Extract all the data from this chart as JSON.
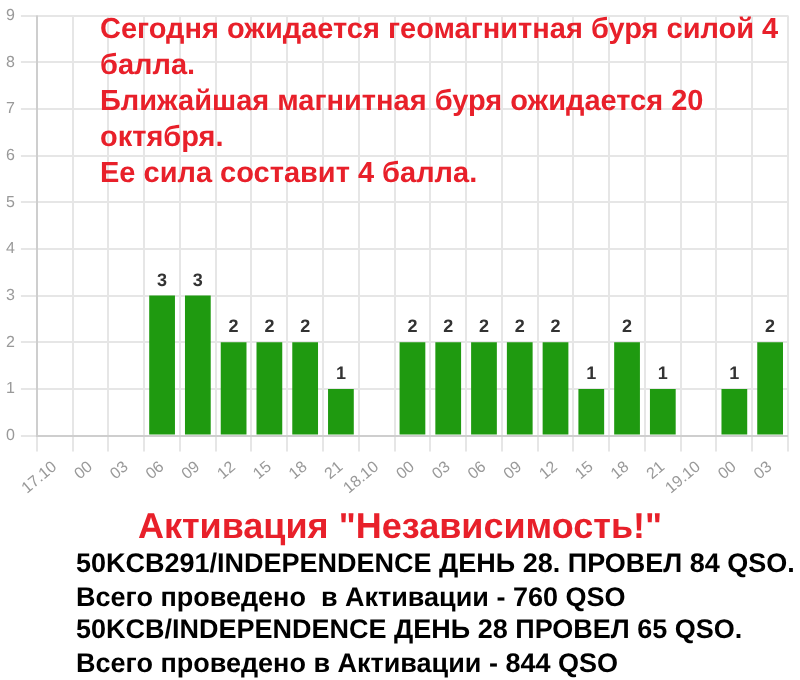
{
  "chart_data": {
    "type": "bar",
    "categories": [
      "17.10",
      "00",
      "03",
      "06",
      "09",
      "12",
      "15",
      "18",
      "21",
      "18.10",
      "00",
      "03",
      "06",
      "09",
      "12",
      "15",
      "18",
      "21",
      "19.10",
      "00",
      "03"
    ],
    "values": [
      0,
      0,
      0,
      3,
      3,
      2,
      2,
      2,
      1,
      0,
      2,
      2,
      2,
      2,
      2,
      1,
      2,
      1,
      0,
      1,
      2
    ],
    "value_labels": [
      null,
      null,
      null,
      "3",
      "3",
      "2",
      "2",
      "2",
      "1",
      null,
      "2",
      "2",
      "2",
      "2",
      "2",
      "1",
      "2",
      "1",
      null,
      "1",
      "2"
    ],
    "color": "#1f9a10",
    "ylim": [
      0,
      9
    ],
    "yticks": [
      0,
      1,
      2,
      3,
      4,
      5,
      6,
      7,
      8,
      9
    ],
    "grid": true,
    "annotations": [
      "Сегодня ожидается геомагнитная буря силой 4 балла.",
      "Ближайшая магнитная буря ожидается 20 октября.",
      "Ее сила составит 4 балла.",
      "Активация \"Независимость!\"",
      "50KCB291/INDEPENDENCE ДЕНЬ 28. ПРОВЕЛ 84 QSO.",
      "Всего проведено  в Активации - 760 QSO",
      "50KCB/INDEPENDENCE ДЕНЬ 28 ПРОВЕЛ 65 QSO.",
      "Всего проведено в Активации - 844 QSO"
    ]
  }
}
